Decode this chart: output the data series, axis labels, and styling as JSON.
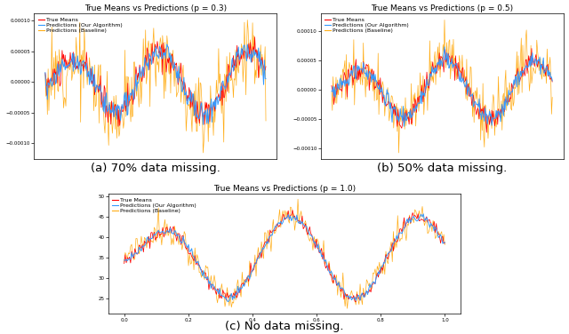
{
  "titles": [
    "True Means vs Predictions (p = 0.3)",
    "True Means vs Predictions (p = 0.5)",
    "True Means vs Predictions (p = 1.0)"
  ],
  "legend_labels": [
    "True Means",
    "Predictions (Our Algorithm)",
    "Predictions (Baseline)"
  ],
  "colors_true": "red",
  "colors_algo": "#3399ff",
  "colors_base": "orange",
  "captions": [
    "(a) 70% data missing.",
    "(b) 50% data missing.",
    "(c) No data missing."
  ],
  "n_points": 300,
  "seed": 7,
  "figsize": [
    6.4,
    3.76
  ],
  "dpi": 100,
  "title_fontsize": 6.5,
  "legend_fontsize": 4.5,
  "tick_fontsize": 4,
  "caption_fontsize": 9.5,
  "lw_true": 0.55,
  "lw_algo": 0.7,
  "lw_base": 0.5
}
